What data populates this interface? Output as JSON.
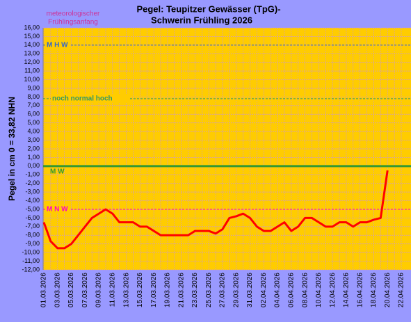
{
  "chart_data": {
    "type": "line",
    "title": [
      "Pegel: Teupitzer Gewässer (TpG)-",
      "Schwerin  Frühling 2026"
    ],
    "annotation": [
      "meteorologischer",
      "Frühlingsanfang"
    ],
    "y_label": "Pegel in cm     0 = 33,82  NHN",
    "categories": [
      "01.03.2026",
      null,
      "03.03.2026",
      null,
      "05.03.2026",
      null,
      "07.03.2026",
      null,
      "09.03.2026",
      null,
      "11.03.2026",
      null,
      "13.03.2026",
      null,
      "15.03.2026",
      null,
      "17.03.2026",
      null,
      "19.03.2026",
      null,
      "21.03.2026",
      null,
      "23.03.2026",
      null,
      "25.03.2026",
      null,
      "27.03.2026",
      null,
      "29.03.2026",
      null,
      "31.03.2026",
      null,
      "02.04.2026",
      null,
      "04.04.2026",
      null,
      "06.04.2026",
      null,
      "08.04.2026",
      null,
      "10.04.2026",
      null,
      "12.04.2026",
      null,
      "14.04.2026",
      null,
      "16.04.2026",
      null,
      "18.04.2026",
      null,
      "20.04.2026",
      null,
      "22.04.2026"
    ],
    "series": [
      {
        "color": "#ff0000",
        "values": [
          -6.5,
          -8.7,
          -9.5,
          -9.5,
          -9.0,
          -8.0,
          -7.0,
          -6.0,
          -5.5,
          -5.0,
          -5.5,
          -6.5,
          -6.5,
          -6.5,
          -7.0,
          -7.0,
          -7.5,
          -8.0,
          -8.0,
          -8.0,
          -8.0,
          -8.0,
          -7.5,
          -7.5,
          -7.5,
          -7.8,
          -7.3,
          -6.0,
          -5.8,
          -5.5,
          -6.0,
          -7.0,
          -7.5,
          -7.5,
          -7.0,
          -6.5,
          -7.5,
          -7.0,
          -6.0,
          -6.0,
          -6.5,
          -7.0,
          -7.0,
          -6.5,
          -6.5,
          -7.0,
          -6.5,
          -6.5,
          -6.2,
          -6.0,
          -0.5,
          null,
          null
        ]
      }
    ],
    "reference_lines": [
      {
        "label": "M H W",
        "value": 14,
        "color": "#3366cc",
        "dashed": true
      },
      {
        "label": "noch  normal  hoch",
        "value": 7.8,
        "color": "#339966",
        "dashed": true
      },
      {
        "label": "M W",
        "value": 0,
        "color": "#339933",
        "dashed": false
      },
      {
        "label": "M N W",
        "value": -5,
        "color": "#ff00cc",
        "dashed": true
      }
    ],
    "ylim": [
      -12,
      16
    ],
    "yticks": [
      {
        "value": 16,
        "label": "16,00"
      },
      {
        "value": 15,
        "label": "15,00"
      },
      {
        "value": 14,
        "label": "14,00"
      },
      {
        "value": 13,
        "label": "13,00"
      },
      {
        "value": 12,
        "label": "12,00"
      },
      {
        "value": 11,
        "label": "11,00"
      },
      {
        "value": 10,
        "label": "10,00"
      },
      {
        "value": 9,
        "label": "9,00"
      },
      {
        "value": 8,
        "label": "8,00"
      },
      {
        "value": 7,
        "label": "7,00"
      },
      {
        "value": 6,
        "label": "6,00"
      },
      {
        "value": 5,
        "label": "5,00"
      },
      {
        "value": 4,
        "label": "4,00"
      },
      {
        "value": 3,
        "label": "3,00"
      },
      {
        "value": 2,
        "label": "2,00"
      },
      {
        "value": 1,
        "label": "1,00"
      },
      {
        "value": 0,
        "label": "0,00"
      },
      {
        "value": -1,
        "label": "-1,00"
      },
      {
        "value": -2,
        "label": "-2,00"
      },
      {
        "value": -3,
        "label": "-3,00"
      },
      {
        "value": -4,
        "label": "-4,00"
      },
      {
        "value": -5,
        "label": "-5,00"
      },
      {
        "value": -6,
        "label": "-6,00"
      },
      {
        "value": -7,
        "label": "-7,00"
      },
      {
        "value": -8,
        "label": "-8,00"
      },
      {
        "value": -9,
        "label": "-9,00"
      },
      {
        "value": -10,
        "label": "-10,00"
      },
      {
        "value": -11,
        "label": "-11,00"
      },
      {
        "value": -12,
        "label": "-12,00"
      }
    ],
    "grid": true,
    "plot_color": "#ffcc00",
    "grid_color": "#cc99cc"
  }
}
